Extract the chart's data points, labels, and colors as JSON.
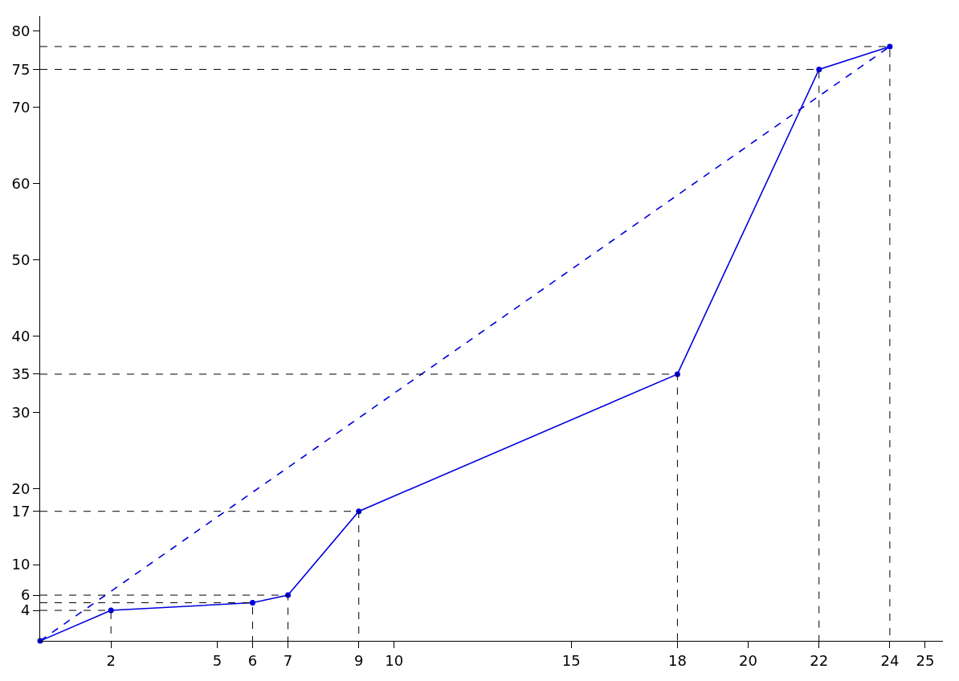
{
  "chart_data": {
    "type": "line",
    "xlim": [
      0,
      25.5
    ],
    "ylim": [
      0,
      82
    ],
    "xticks": [
      2,
      5,
      6,
      7,
      9,
      10,
      15,
      18,
      20,
      22,
      24,
      25
    ],
    "yticks": [
      4,
      6,
      10,
      17,
      20,
      30,
      35,
      40,
      50,
      60,
      70,
      75,
      80
    ],
    "series": [
      {
        "color": "#0000dd",
        "x": [
          0,
          2,
          6,
          7,
          9,
          18,
          22,
          24
        ],
        "values": [
          0,
          4,
          5,
          6,
          17,
          35,
          75,
          78
        ],
        "marker": "circle",
        "line_style": "solid"
      },
      {
        "color": "#0000dd",
        "x": [
          0,
          24
        ],
        "values": [
          0,
          78
        ],
        "marker": "none",
        "line_style": "dashed"
      },
      {
        "color": "#000000",
        "x": [
          0,
          2,
          2
        ],
        "values": [
          4,
          4,
          0
        ],
        "marker": "none",
        "line_style": "dashed"
      },
      {
        "color": "#000000",
        "x": [
          0,
          6,
          6
        ],
        "values": [
          5,
          5,
          0
        ],
        "marker": "none",
        "line_style": "dashed"
      },
      {
        "color": "#000000",
        "x": [
          0,
          7,
          7
        ],
        "values": [
          6,
          6,
          0
        ],
        "marker": "none",
        "line_style": "dashed"
      },
      {
        "color": "#000000",
        "x": [
          0,
          9,
          9
        ],
        "values": [
          17,
          17,
          0
        ],
        "marker": "none",
        "line_style": "dashed"
      },
      {
        "color": "#000000",
        "x": [
          0,
          18,
          18
        ],
        "values": [
          35,
          35,
          0
        ],
        "marker": "none",
        "line_style": "dashed"
      },
      {
        "color": "#000000",
        "x": [
          0,
          22,
          22
        ],
        "values": [
          75,
          75,
          0
        ],
        "marker": "none",
        "line_style": "dashed"
      },
      {
        "color": "#000000",
        "x": [
          0,
          24,
          24
        ],
        "values": [
          78,
          78,
          0
        ],
        "marker": "none",
        "line_style": "dashed"
      }
    ]
  }
}
